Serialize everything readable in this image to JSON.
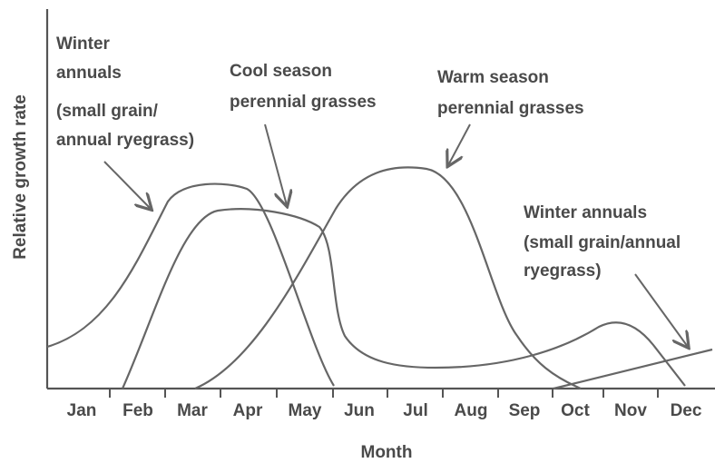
{
  "x_axis_label": "Month",
  "y_axis_label": "Relative growth rate",
  "months": [
    "Jan",
    "Feb",
    "Mar",
    "Apr",
    "May",
    "Jun",
    "Jul",
    "Aug",
    "Sep",
    "Oct",
    "Nov",
    "Dec"
  ],
  "annotations": [
    {
      "lines": [
        "Winter",
        "annuals",
        "(small grain/",
        "annual ryegrass)"
      ]
    },
    {
      "lines": [
        "Cool season",
        "perennial grasses"
      ]
    },
    {
      "lines": [
        "Warm season",
        "perennial grasses"
      ]
    },
    {
      "lines": [
        "Winter annuals",
        "(small grain/annual",
        "ryegrass)"
      ]
    }
  ]
}
